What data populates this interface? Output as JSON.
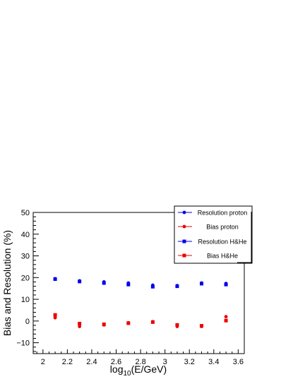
{
  "chart_data": {
    "type": "scatter",
    "title": "",
    "xlabel": {
      "base": "log",
      "sub": "10",
      "rest": "(E/GeV)"
    },
    "ylabel": "Bias and Resolution (%)",
    "xlim": [
      1.92,
      3.65
    ],
    "ylim": [
      -15,
      50
    ],
    "x_ticks": [
      {
        "value": 2,
        "label": "2"
      },
      {
        "value": 2.2,
        "label": "2.2"
      },
      {
        "value": 2.4,
        "label": "2.4"
      },
      {
        "value": 2.6,
        "label": "2.6"
      },
      {
        "value": 2.8,
        "label": "2.8"
      },
      {
        "value": 3,
        "label": "3"
      },
      {
        "value": 3.2,
        "label": "3.2"
      },
      {
        "value": 3.4,
        "label": "3.4"
      },
      {
        "value": 3.6,
        "label": "3.6"
      }
    ],
    "y_ticks": [
      {
        "value": -10,
        "label": "−10"
      },
      {
        "value": 0,
        "label": "0"
      },
      {
        "value": 10,
        "label": "10"
      },
      {
        "value": 20,
        "label": "20"
      },
      {
        "value": 30,
        "label": "30"
      },
      {
        "value": 40,
        "label": "40"
      },
      {
        "value": 50,
        "label": "50"
      }
    ],
    "grid": false,
    "legend_position": "top-right",
    "series": [
      {
        "name": "Resolution proton",
        "color": "#0000ee",
        "marker": "circle",
        "x": [
          2.1,
          2.3,
          2.5,
          2.7,
          2.9,
          3.1,
          3.3,
          3.5
        ],
        "y": [
          19.5,
          18.5,
          18.0,
          17.5,
          16.5,
          16.3,
          17.5,
          17.3
        ]
      },
      {
        "name": "Bias proton",
        "color": "#ee0000",
        "marker": "circle",
        "x": [
          2.1,
          2.3,
          2.5,
          2.7,
          2.9,
          3.1,
          3.3,
          3.5
        ],
        "y": [
          1.5,
          -2.5,
          -1.8,
          -0.8,
          -0.3,
          -2.5,
          -2.5,
          2.0
        ]
      },
      {
        "name": "Resolution H&He",
        "color": "#0000ee",
        "marker": "square",
        "x": [
          2.1,
          2.3,
          2.5,
          2.7,
          2.9,
          3.1,
          3.3,
          3.5
        ],
        "y": [
          19.3,
          18.2,
          17.5,
          16.8,
          15.8,
          16.0,
          17.2,
          16.8
        ]
      },
      {
        "name": "Bias H&He",
        "color": "#ee0000",
        "marker": "square",
        "x": [
          2.1,
          2.3,
          2.5,
          2.7,
          2.9,
          3.1,
          3.3,
          3.5
        ],
        "y": [
          2.8,
          -1.2,
          -1.5,
          -1.0,
          -0.5,
          -1.8,
          -2.2,
          0.2
        ]
      }
    ]
  }
}
